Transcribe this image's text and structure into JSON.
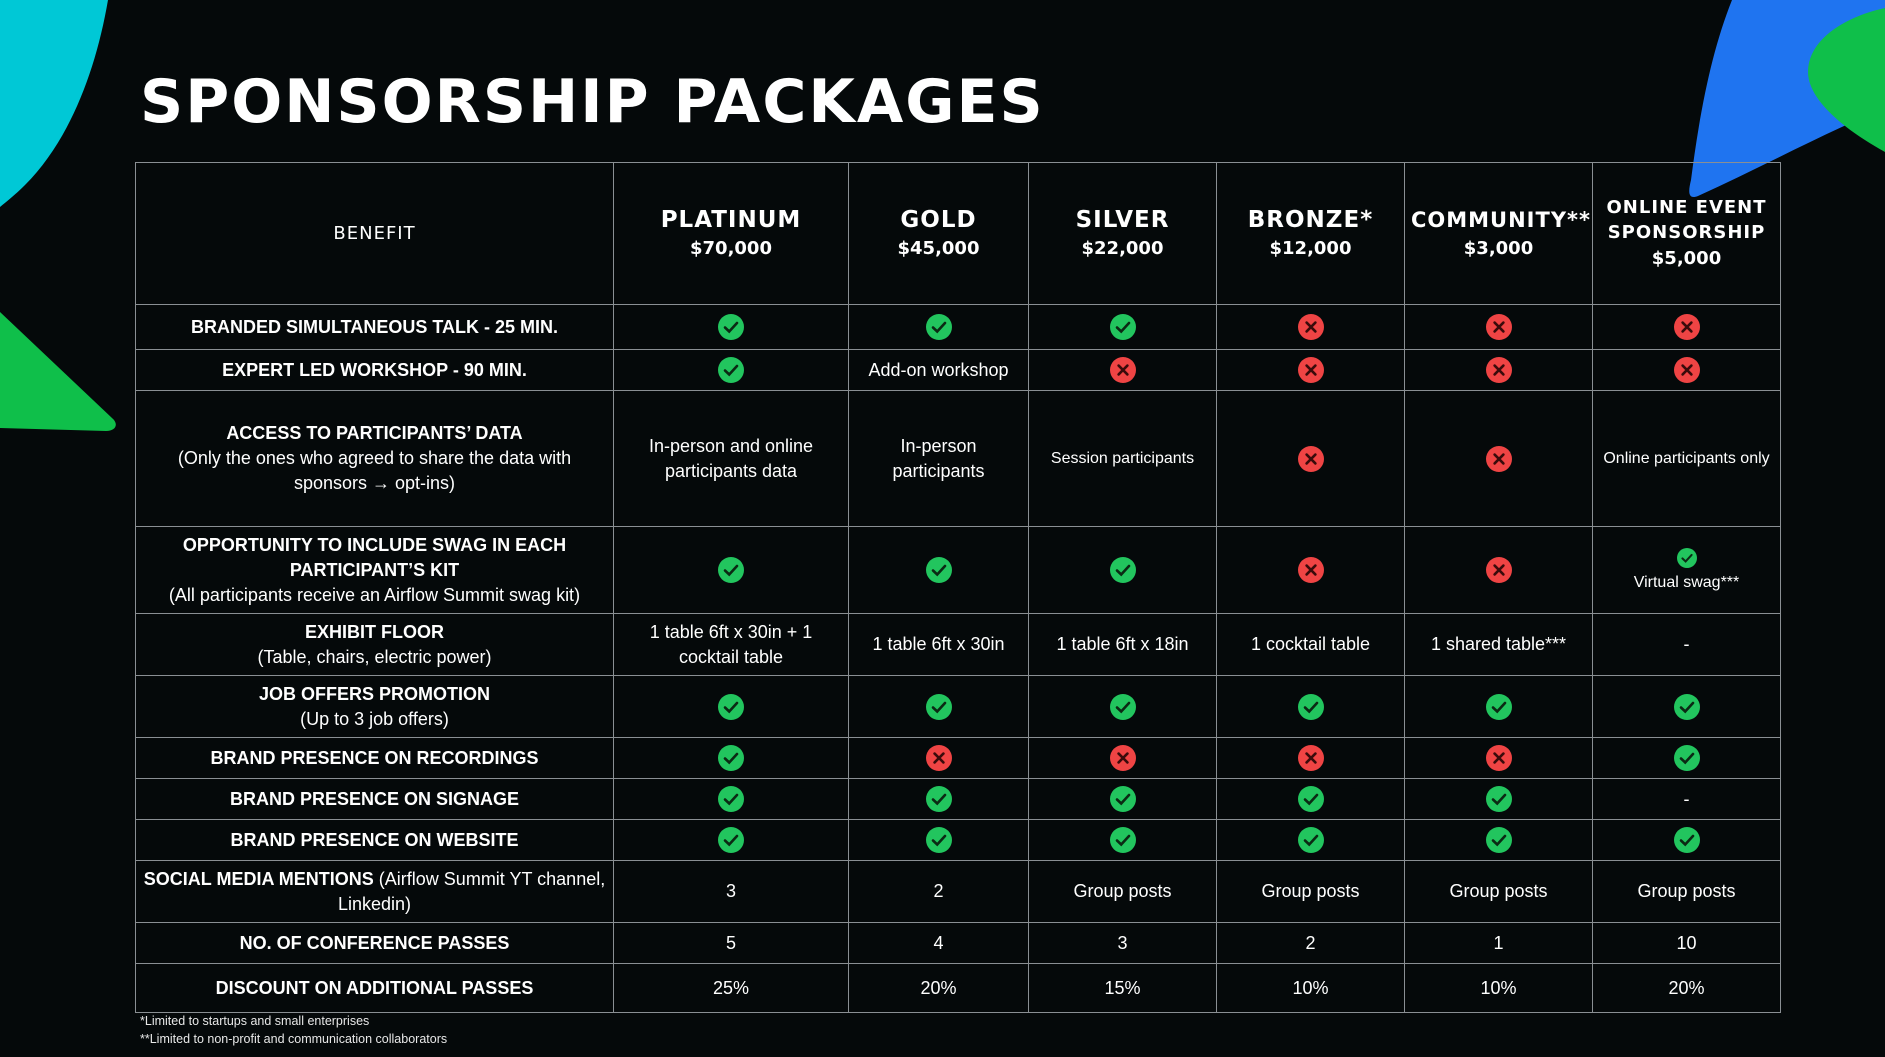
{
  "title": "SPONSORSHIP PACKAGES",
  "colors": {
    "background": "#05090a",
    "check": "#22c55e",
    "cross": "#ef4444",
    "accent_cyan": "#00c8d6",
    "accent_green": "#0fbf4a",
    "accent_blue": "#1f74f0"
  },
  "header": {
    "benefit": "BENEFIT",
    "tiers": [
      {
        "name": "PLATINUM",
        "price": "$70,000"
      },
      {
        "name": "GOLD",
        "price": "$45,000"
      },
      {
        "name": "SILVER",
        "price": "$22,000"
      },
      {
        "name": "BRONZE*",
        "price": "$12,000"
      },
      {
        "name": "COMMUNITY**",
        "price": "$3,000"
      },
      {
        "name": "ONLINE EVENT SPONSORSHIP",
        "price": "$5,000"
      }
    ]
  },
  "rows": [
    {
      "title": "BRANDED SIMULTANEOUS TALK - 25 MIN.",
      "subtitle": "",
      "cells": [
        {
          "icon": "check"
        },
        {
          "icon": "check"
        },
        {
          "icon": "check"
        },
        {
          "icon": "cross"
        },
        {
          "icon": "cross"
        },
        {
          "icon": "cross"
        }
      ]
    },
    {
      "title": "EXPERT LED WORKSHOP - 90 MIN.",
      "subtitle": "",
      "cells": [
        {
          "icon": "check"
        },
        {
          "text": "Add-on workshop"
        },
        {
          "icon": "cross"
        },
        {
          "icon": "cross"
        },
        {
          "icon": "cross"
        },
        {
          "icon": "cross"
        }
      ]
    },
    {
      "title": "ACCESS TO PARTICIPANTS’ DATA",
      "subtitle": "(Only the ones who agreed to share the data with sponsors → opt-ins)",
      "cells": [
        {
          "text": "In-person and online participants data"
        },
        {
          "text": "In-person participants"
        },
        {
          "text": "Session participants",
          "small": true
        },
        {
          "icon": "cross"
        },
        {
          "icon": "cross"
        },
        {
          "text": "Online participants only",
          "small": true
        }
      ]
    },
    {
      "title": "OPPORTUNITY TO INCLUDE SWAG IN EACH PARTICIPANT’S KIT",
      "subtitle": "(All participants receive an Airflow Summit swag kit)",
      "cells": [
        {
          "icon": "check"
        },
        {
          "icon": "check"
        },
        {
          "icon": "check"
        },
        {
          "icon": "cross"
        },
        {
          "icon": "cross"
        },
        {
          "icon": "check",
          "text": "Virtual swag***",
          "small": true
        }
      ]
    },
    {
      "title": "EXHIBIT FLOOR",
      "subtitle": "(Table, chairs, electric power)",
      "cells": [
        {
          "text": "1 table 6ft x 30in + 1 cocktail table"
        },
        {
          "text": "1 table 6ft x 30in"
        },
        {
          "text": "1 table 6ft x 18in"
        },
        {
          "text": "1 cocktail table"
        },
        {
          "text": "1 shared table***"
        },
        {
          "text": "-"
        }
      ]
    },
    {
      "title": "JOB OFFERS PROMOTION",
      "subtitle": "(Up to 3 job offers)",
      "cells": [
        {
          "icon": "check"
        },
        {
          "icon": "check"
        },
        {
          "icon": "check"
        },
        {
          "icon": "check"
        },
        {
          "icon": "check"
        },
        {
          "icon": "check"
        }
      ]
    },
    {
      "title": "BRAND PRESENCE ON RECORDINGS",
      "subtitle": "",
      "cells": [
        {
          "icon": "check"
        },
        {
          "icon": "cross"
        },
        {
          "icon": "cross"
        },
        {
          "icon": "cross"
        },
        {
          "icon": "cross"
        },
        {
          "icon": "check"
        }
      ]
    },
    {
      "title": "BRAND PRESENCE ON SIGNAGE",
      "subtitle": "",
      "cells": [
        {
          "icon": "check"
        },
        {
          "icon": "check"
        },
        {
          "icon": "check"
        },
        {
          "icon": "check"
        },
        {
          "icon": "check"
        },
        {
          "text": "-"
        }
      ]
    },
    {
      "title": "BRAND PRESENCE ON WEBSITE",
      "subtitle": "",
      "cells": [
        {
          "icon": "check"
        },
        {
          "icon": "check"
        },
        {
          "icon": "check"
        },
        {
          "icon": "check"
        },
        {
          "icon": "check"
        },
        {
          "icon": "check"
        }
      ]
    },
    {
      "title": "SOCIAL MEDIA MENTIONS",
      "title_suffix": " (Airflow Summit YT channel, Linkedin)",
      "subtitle": "",
      "cells": [
        {
          "text": "3"
        },
        {
          "text": "2"
        },
        {
          "text": "Group posts"
        },
        {
          "text": "Group posts"
        },
        {
          "text": "Group posts"
        },
        {
          "text": "Group posts"
        }
      ]
    },
    {
      "title": "NO. OF CONFERENCE PASSES",
      "subtitle": "",
      "cells": [
        {
          "text": "5"
        },
        {
          "text": "4"
        },
        {
          "text": "3"
        },
        {
          "text": "2"
        },
        {
          "text": "1"
        },
        {
          "text": "10"
        }
      ]
    },
    {
      "title": "DISCOUNT ON ADDITIONAL PASSES",
      "subtitle": "",
      "cells": [
        {
          "text": "25%"
        },
        {
          "text": "20%"
        },
        {
          "text": "15%"
        },
        {
          "text": "10%"
        },
        {
          "text": "10%"
        },
        {
          "text": "20%"
        }
      ]
    }
  ],
  "footnotes": [
    "*Limited to startups and small enterprises",
    "**Limited to non-profit and communication collaborators"
  ]
}
